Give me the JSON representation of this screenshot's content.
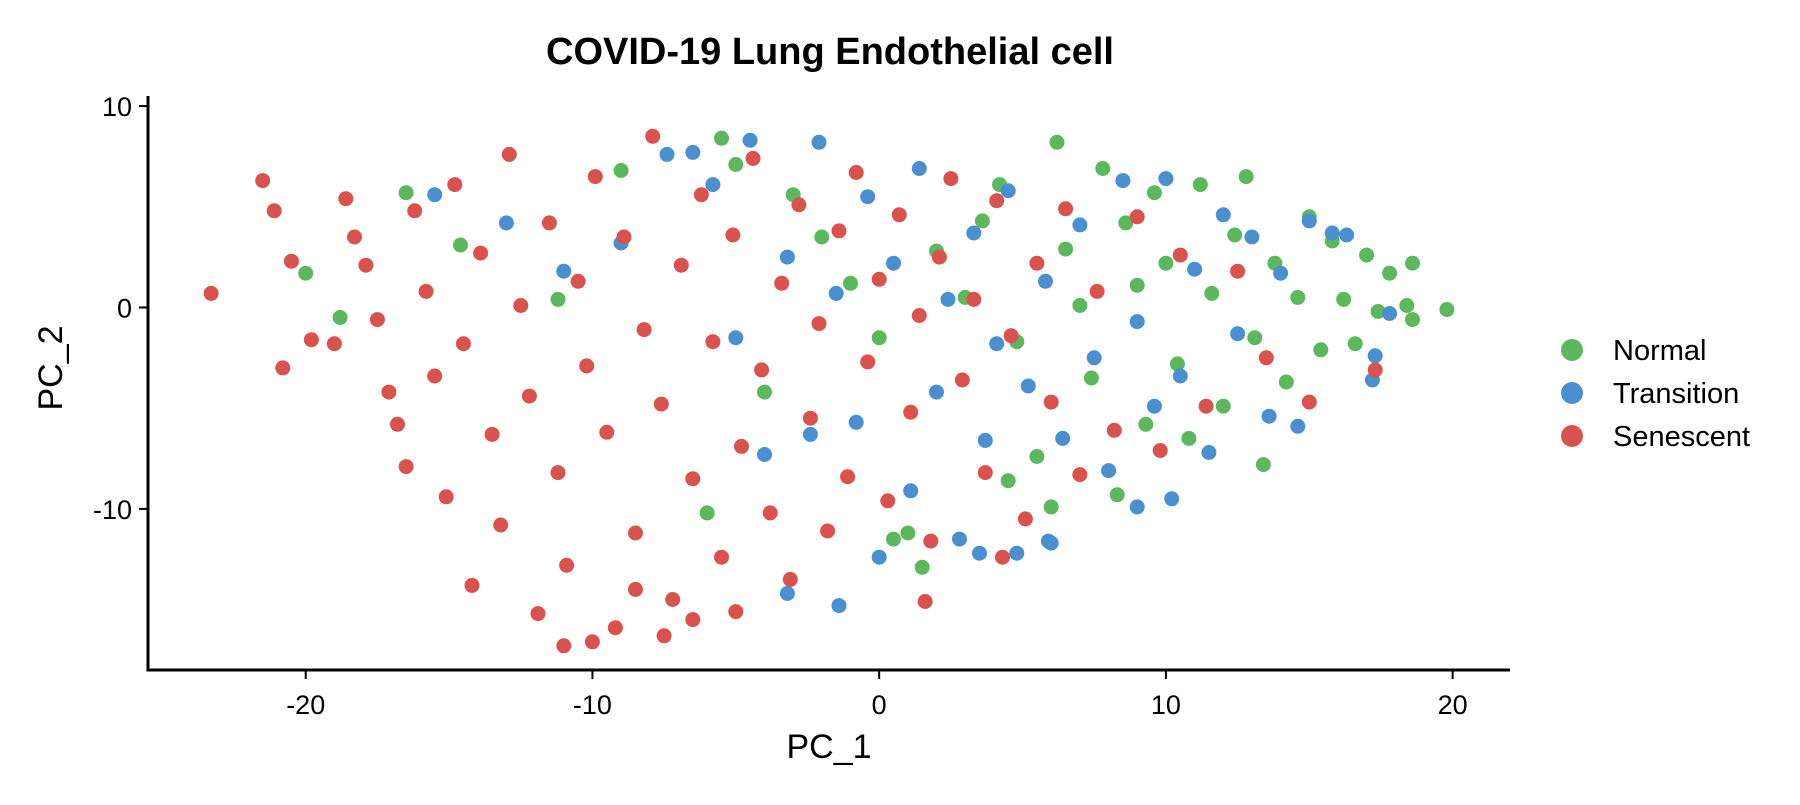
{
  "chart_data": {
    "type": "scatter",
    "title": "COVID-19 Lung Endothelial cell",
    "xlabel": "PC_1",
    "ylabel": "PC_2",
    "xlim": [
      -25.5,
      22
    ],
    "ylim": [
      -18,
      10.5
    ],
    "x_ticks": [
      -20,
      -10,
      0,
      10,
      20
    ],
    "x_tick_labels": [
      "-20",
      "-10",
      "0",
      "10",
      "20"
    ],
    "y_ticks": [
      -10,
      0,
      10
    ],
    "y_tick_labels": [
      "-10",
      "0",
      "10"
    ],
    "grid": false,
    "legend_position": "right",
    "series": [
      {
        "name": "Normal",
        "color": "#5cb85c",
        "points": [
          [
            -20,
            1.7
          ],
          [
            -18.8,
            -0.5
          ],
          [
            -16.5,
            5.7
          ],
          [
            -14.6,
            3.1
          ],
          [
            -11.2,
            0.4
          ],
          [
            -9,
            6.8
          ],
          [
            -5.5,
            8.4
          ],
          [
            -5,
            7.1
          ],
          [
            -4,
            -4.2
          ],
          [
            -3,
            5.6
          ],
          [
            -2,
            3.5
          ],
          [
            -1,
            1.2
          ],
          [
            0,
            -1.5
          ],
          [
            0.5,
            -11.5
          ],
          [
            1.5,
            -12.9
          ],
          [
            2,
            2.8
          ],
          [
            3,
            0.5
          ],
          [
            3.6,
            4.3
          ],
          [
            4.2,
            6.1
          ],
          [
            4.8,
            -1.7
          ],
          [
            5.5,
            -7.4
          ],
          [
            6.2,
            8.2
          ],
          [
            6.5,
            2.9
          ],
          [
            7,
            0.1
          ],
          [
            7.4,
            -3.5
          ],
          [
            7.8,
            6.9
          ],
          [
            8.3,
            -9.3
          ],
          [
            8.6,
            4.2
          ],
          [
            9,
            1.1
          ],
          [
            9.3,
            -5.8
          ],
          [
            9.6,
            5.7
          ],
          [
            10,
            2.2
          ],
          [
            10.4,
            -2.8
          ],
          [
            10.8,
            -6.5
          ],
          [
            11.2,
            6.1
          ],
          [
            11.6,
            0.7
          ],
          [
            12,
            -4.9
          ],
          [
            12.4,
            3.6
          ],
          [
            12.8,
            6.5
          ],
          [
            13.1,
            -1.5
          ],
          [
            13.4,
            -7.8
          ],
          [
            13.8,
            2.2
          ],
          [
            14.2,
            -3.7
          ],
          [
            14.6,
            0.5
          ],
          [
            15,
            4.5
          ],
          [
            15.4,
            -2.1
          ],
          [
            15.8,
            3.3
          ],
          [
            16.2,
            0.4
          ],
          [
            16.6,
            -1.8
          ],
          [
            17,
            2.6
          ],
          [
            17.4,
            -0.2
          ],
          [
            17.8,
            1.7
          ],
          [
            18.4,
            0.1
          ],
          [
            18.6,
            2.2
          ],
          [
            18.6,
            -0.6
          ],
          [
            19.8,
            -0.1
          ],
          [
            4.5,
            -8.6
          ],
          [
            6,
            -9.9
          ],
          [
            -6,
            -10.2
          ],
          [
            1,
            -11.2
          ]
        ]
      },
      {
        "name": "Transition",
        "color": "#4a8fcf",
        "points": [
          [
            -15.5,
            5.6
          ],
          [
            -13,
            4.2
          ],
          [
            -11,
            1.8
          ],
          [
            -9,
            3.2
          ],
          [
            -7.4,
            7.6
          ],
          [
            -6.5,
            7.7
          ],
          [
            -5.8,
            6.1
          ],
          [
            -5,
            -1.5
          ],
          [
            -4.5,
            8.3
          ],
          [
            -4,
            -7.3
          ],
          [
            -3.2,
            2.5
          ],
          [
            -3.2,
            -14.2
          ],
          [
            -2.4,
            -6.3
          ],
          [
            -2.1,
            8.2
          ],
          [
            -1.5,
            0.7
          ],
          [
            -1.4,
            -14.8
          ],
          [
            -0.8,
            -5.7
          ],
          [
            -0.4,
            5.5
          ],
          [
            0,
            -12.4
          ],
          [
            0.5,
            2.2
          ],
          [
            1.1,
            -9.1
          ],
          [
            1.4,
            6.9
          ],
          [
            2,
            -4.2
          ],
          [
            2.4,
            0.4
          ],
          [
            2.8,
            -11.5
          ],
          [
            3.3,
            3.7
          ],
          [
            3.7,
            -6.6
          ],
          [
            4.1,
            -1.8
          ],
          [
            4.5,
            5.8
          ],
          [
            4.8,
            -12.2
          ],
          [
            5.2,
            -3.9
          ],
          [
            5.8,
            1.3
          ],
          [
            6,
            -11.7
          ],
          [
            6.4,
            -6.5
          ],
          [
            7,
            4.1
          ],
          [
            7.5,
            -2.5
          ],
          [
            8,
            -8.1
          ],
          [
            8.5,
            6.3
          ],
          [
            9,
            -0.7
          ],
          [
            9.6,
            -4.9
          ],
          [
            10,
            6.4
          ],
          [
            10.5,
            -3.4
          ],
          [
            11,
            1.9
          ],
          [
            11.5,
            -7.2
          ],
          [
            12,
            4.6
          ],
          [
            12.5,
            -1.3
          ],
          [
            13,
            3.5
          ],
          [
            13.6,
            -5.4
          ],
          [
            14,
            1.7
          ],
          [
            14.6,
            -5.9
          ],
          [
            15,
            4.3
          ],
          [
            15.8,
            3.7
          ],
          [
            16.3,
            3.6
          ],
          [
            17.3,
            -2.4
          ],
          [
            17.2,
            -3.6
          ],
          [
            17.8,
            -0.3
          ],
          [
            5.9,
            -11.6
          ],
          [
            3.5,
            -12.2
          ],
          [
            10.2,
            -9.5
          ],
          [
            9,
            -9.9
          ]
        ]
      },
      {
        "name": "Senescent",
        "color": "#d9524e",
        "points": [
          [
            -23.3,
            0.7
          ],
          [
            -21.5,
            6.3
          ],
          [
            -21.1,
            4.8
          ],
          [
            -20.8,
            -3
          ],
          [
            -20.5,
            2.3
          ],
          [
            -19.8,
            -1.6
          ],
          [
            -19,
            -1.8
          ],
          [
            -18.6,
            5.4
          ],
          [
            -18.3,
            3.5
          ],
          [
            -17.9,
            2.1
          ],
          [
            -17.5,
            -0.6
          ],
          [
            -17.1,
            -4.2
          ],
          [
            -16.8,
            -5.8
          ],
          [
            -16.5,
            -7.9
          ],
          [
            -16.2,
            4.8
          ],
          [
            -15.8,
            0.8
          ],
          [
            -15.5,
            -3.4
          ],
          [
            -15.1,
            -9.4
          ],
          [
            -14.8,
            6.1
          ],
          [
            -14.5,
            -1.8
          ],
          [
            -14.2,
            -13.8
          ],
          [
            -13.9,
            2.7
          ],
          [
            -13.5,
            -6.3
          ],
          [
            -13.2,
            -10.8
          ],
          [
            -12.9,
            7.6
          ],
          [
            -12.5,
            0.1
          ],
          [
            -12.2,
            -4.4
          ],
          [
            -11.9,
            -15.2
          ],
          [
            -11.5,
            4.2
          ],
          [
            -11.2,
            -8.2
          ],
          [
            -10.9,
            -12.8
          ],
          [
            -10.5,
            1.3
          ],
          [
            -10.2,
            -2.9
          ],
          [
            -9.9,
            6.5
          ],
          [
            -9.5,
            -6.2
          ],
          [
            -9.2,
            -15.9
          ],
          [
            -8.9,
            3.5
          ],
          [
            -8.5,
            -11.2
          ],
          [
            -8.2,
            -1.1
          ],
          [
            -7.9,
            8.5
          ],
          [
            -7.6,
            -4.8
          ],
          [
            -7.2,
            -14.5
          ],
          [
            -6.9,
            2.1
          ],
          [
            -6.5,
            -8.5
          ],
          [
            -6.2,
            5.6
          ],
          [
            -5.8,
            -1.7
          ],
          [
            -5.5,
            -12.4
          ],
          [
            -5.1,
            3.6
          ],
          [
            -4.8,
            -6.9
          ],
          [
            -4.4,
            7.4
          ],
          [
            -4.1,
            -3.1
          ],
          [
            -3.8,
            -10.2
          ],
          [
            -3.4,
            1.2
          ],
          [
            -3.1,
            -13.5
          ],
          [
            -2.8,
            5.1
          ],
          [
            -2.4,
            -5.5
          ],
          [
            -2.1,
            -0.8
          ],
          [
            -1.8,
            -11.1
          ],
          [
            -1.4,
            3.8
          ],
          [
            -1.1,
            -8.4
          ],
          [
            -0.8,
            6.7
          ],
          [
            -0.4,
            -2.7
          ],
          [
            0,
            1.4
          ],
          [
            0.3,
            -9.6
          ],
          [
            0.7,
            4.6
          ],
          [
            1.1,
            -5.2
          ],
          [
            1.4,
            -0.4
          ],
          [
            1.8,
            -11.6
          ],
          [
            2.1,
            2.5
          ],
          [
            2.5,
            6.4
          ],
          [
            2.9,
            -3.6
          ],
          [
            3.3,
            0.4
          ],
          [
            3.7,
            -8.2
          ],
          [
            4.1,
            5.3
          ],
          [
            4.6,
            -1.4
          ],
          [
            5.1,
            -10.5
          ],
          [
            5.5,
            2.2
          ],
          [
            6,
            -4.7
          ],
          [
            6.5,
            4.9
          ],
          [
            7,
            -8.3
          ],
          [
            7.6,
            0.8
          ],
          [
            8.2,
            -6.1
          ],
          [
            9,
            4.5
          ],
          [
            9.8,
            -7.1
          ],
          [
            10.5,
            2.6
          ],
          [
            11.4,
            -4.9
          ],
          [
            12.5,
            1.8
          ],
          [
            13.5,
            -2.5
          ],
          [
            15,
            -4.7
          ],
          [
            17.3,
            -3.1
          ],
          [
            -10,
            -16.6
          ],
          [
            -7.5,
            -16.3
          ],
          [
            -11,
            -16.8
          ],
          [
            -8.5,
            -14
          ],
          [
            -5,
            -15.1
          ],
          [
            -6.5,
            -15.5
          ],
          [
            1.6,
            -14.6
          ],
          [
            4.3,
            -12.4
          ]
        ]
      }
    ]
  }
}
